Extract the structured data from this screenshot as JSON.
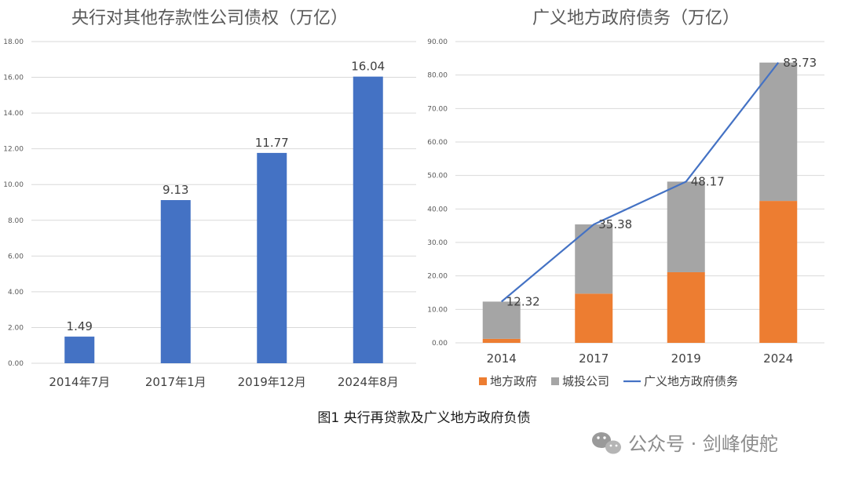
{
  "chart_data": [
    {
      "type": "bar",
      "title": "央行对其他存款性公司债权（万亿）",
      "categories": [
        "2014年7月",
        "2017年1月",
        "2019年12月",
        "2024年8月"
      ],
      "values": [
        1.49,
        9.13,
        11.77,
        16.04
      ],
      "value_labels": [
        "1.49",
        "9.13",
        "11.77",
        "16.04"
      ],
      "ylim": [
        0,
        18
      ],
      "yticks": [
        "0.00",
        "2.00",
        "4.00",
        "6.00",
        "8.00",
        "10.00",
        "12.00",
        "14.00",
        "16.00",
        "18.00"
      ],
      "grid": true,
      "color": "#4472c4"
    },
    {
      "type": "bar+line",
      "title": "广义地方政府债务（万亿）",
      "categories": [
        "2014",
        "2017",
        "2019",
        "2024"
      ],
      "ylim": [
        0,
        90
      ],
      "yticks": [
        "0.00",
        "10.00",
        "20.00",
        "30.00",
        "40.00",
        "50.00",
        "60.00",
        "70.00",
        "80.00",
        "90.00"
      ],
      "grid": true,
      "legend_position": "bottom",
      "series": [
        {
          "name": "地方政府",
          "kind": "stacked-bar",
          "values": [
            1.2,
            14.7,
            21.1,
            42.4
          ],
          "color": "#ed7d31"
        },
        {
          "name": "城投公司",
          "kind": "stacked-bar",
          "values": [
            11.12,
            20.68,
            27.07,
            41.33
          ],
          "color": "#a5a5a5"
        },
        {
          "name": "广义地方政府债务",
          "kind": "line",
          "values": [
            12.32,
            35.38,
            48.17,
            83.73
          ],
          "value_labels": [
            "12.32",
            "35.38",
            "48.17",
            "83.73"
          ],
          "color": "#4472c4"
        }
      ]
    }
  ],
  "caption": "图1 央行再贷款及广义地方政府负债",
  "watermark": {
    "text": "公众号 · 剑峰使舵",
    "icon": "wechat-icon"
  }
}
